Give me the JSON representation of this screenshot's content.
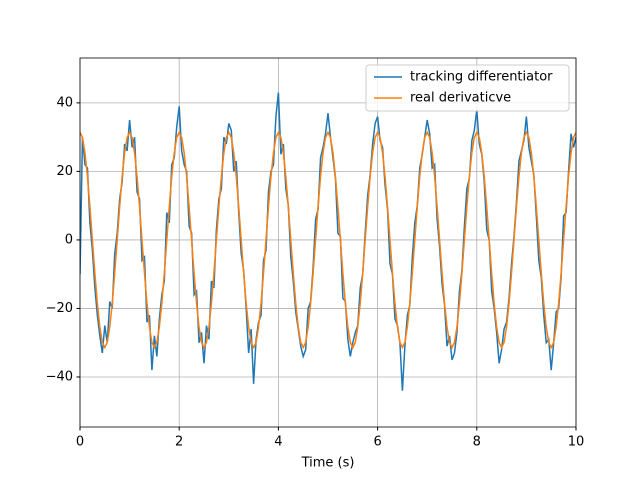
{
  "chart_data": {
    "type": "line",
    "xlabel": "Time (s)",
    "xlim": [
      0,
      10
    ],
    "ylim": [
      -54.6,
      53.1
    ],
    "xticks": [
      0,
      2,
      4,
      6,
      8,
      10
    ],
    "yticks": [
      {
        "value": -40,
        "label": "−40"
      },
      {
        "value": -20,
        "label": "−20"
      },
      0,
      20,
      40
    ],
    "grid": true,
    "legend": "upper right",
    "x": [
      0,
      0.05,
      0.1,
      0.15,
      0.2,
      0.25,
      0.3,
      0.35,
      0.4,
      0.45,
      0.5,
      0.55,
      0.6,
      0.65,
      0.7,
      0.75,
      0.8,
      0.85,
      0.9,
      0.95,
      1,
      1.05,
      1.1,
      1.15,
      1.2,
      1.25,
      1.3,
      1.35,
      1.4,
      1.45,
      1.5,
      1.55,
      1.6,
      1.65,
      1.7,
      1.75,
      1.8,
      1.85,
      1.9,
      1.95,
      2,
      2.05,
      2.1,
      2.15,
      2.2,
      2.25,
      2.3,
      2.35,
      2.4,
      2.45,
      2.5,
      2.55,
      2.6,
      2.65,
      2.7,
      2.75,
      2.8,
      2.85,
      2.9,
      2.95,
      3,
      3.05,
      3.1,
      3.15,
      3.2,
      3.25,
      3.3,
      3.35,
      3.4,
      3.45,
      3.5,
      3.55,
      3.6,
      3.65,
      3.7,
      3.75,
      3.8,
      3.85,
      3.9,
      3.95,
      4,
      4.05,
      4.1,
      4.15,
      4.2,
      4.25,
      4.3,
      4.35,
      4.4,
      4.45,
      4.5,
      4.55,
      4.6,
      4.65,
      4.7,
      4.75,
      4.8,
      4.85,
      4.9,
      4.95,
      5,
      5.05,
      5.1,
      5.15,
      5.2,
      5.25,
      5.3,
      5.35,
      5.4,
      5.45,
      5.5,
      5.55,
      5.6,
      5.65,
      5.7,
      5.75,
      5.8,
      5.85,
      5.9,
      5.95,
      6,
      6.05,
      6.1,
      6.15,
      6.2,
      6.25,
      6.3,
      6.35,
      6.4,
      6.45,
      6.5,
      6.55,
      6.6,
      6.65,
      6.7,
      6.75,
      6.8,
      6.85,
      6.9,
      6.95,
      7,
      7.05,
      7.1,
      7.15,
      7.2,
      7.25,
      7.3,
      7.35,
      7.4,
      7.45,
      7.5,
      7.55,
      7.6,
      7.65,
      7.7,
      7.75,
      7.8,
      7.85,
      7.9,
      7.95,
      8,
      8.05,
      8.1,
      8.15,
      8.2,
      8.25,
      8.3,
      8.35,
      8.4,
      8.45,
      8.5,
      8.55,
      8.6,
      8.65,
      8.7,
      8.75,
      8.8,
      8.85,
      8.9,
      8.95,
      9,
      9.05,
      9.1,
      9.15,
      9.2,
      9.25,
      9.3,
      9.35,
      9.4,
      9.45,
      9.5,
      9.55,
      9.6,
      9.65,
      9.7,
      9.75,
      9.8,
      9.85,
      9.9,
      9.95,
      10
    ],
    "series": [
      {
        "name": "tracking differentiator",
        "color": "#1f77b4",
        "values": [
          -10,
          30,
          22,
          21,
          5,
          -3,
          -14,
          -22,
          -28,
          -33,
          -25,
          -30,
          -18,
          -20,
          -4,
          2,
          12,
          17,
          28,
          26,
          35,
          27,
          30,
          14,
          12,
          -6,
          -5,
          -24,
          -22,
          -38,
          -28,
          -34,
          -23,
          -16,
          -12,
          8,
          5,
          22,
          24,
          33,
          39,
          26,
          22,
          20,
          4,
          2,
          -16,
          -15,
          -30,
          -27,
          -36,
          -25,
          -29,
          -12,
          -14,
          3,
          12,
          15,
          30,
          28,
          34,
          32,
          20,
          23,
          8,
          -4,
          -9,
          -20,
          -33,
          -26,
          -42,
          -29,
          -24,
          -22,
          -6,
          -3,
          14,
          20,
          22,
          36,
          43,
          25,
          28,
          15,
          10,
          -5,
          -12,
          -21,
          -26,
          -31,
          -34,
          -32,
          -20,
          -18,
          -8,
          6,
          9,
          24,
          27,
          31,
          37,
          30,
          24,
          18,
          2,
          1,
          -17,
          -18,
          -29,
          -34,
          -30,
          -27,
          -25,
          -14,
          -10,
          2,
          13,
          19,
          28,
          34,
          36,
          29,
          27,
          16,
          9,
          -7,
          -10,
          -23,
          -25,
          -30,
          -44,
          -31,
          -22,
          -19,
          -5,
          5,
          10,
          21,
          25,
          30,
          35,
          31,
          21,
          22,
          6,
          -2,
          -13,
          -19,
          -31,
          -28,
          -35,
          -33,
          -27,
          -15,
          -9,
          4,
          15,
          18,
          29,
          32,
          38,
          28,
          25,
          17,
          3,
          0,
          -15,
          -20,
          -27,
          -36,
          -32,
          -26,
          -24,
          -17,
          -7,
          1,
          11,
          23,
          26,
          29,
          36,
          27,
          23,
          19,
          7,
          -6,
          -11,
          -22,
          -30,
          -29,
          -38,
          -30,
          -21,
          -20,
          -11,
          7,
          8,
          20,
          31,
          27,
          30
        ]
      },
      {
        "name": "real derivaticve",
        "color": "#ff7f0e",
        "values": [
          31.4,
          29.9,
          25.4,
          18.5,
          9.7,
          0,
          -9.7,
          -18.5,
          -25.4,
          -29.9,
          -31.4,
          -29.9,
          -25.4,
          -18.5,
          -9.7,
          0,
          9.7,
          18.5,
          25.4,
          29.9,
          31.4,
          29.9,
          25.4,
          18.5,
          9.7,
          0,
          -9.7,
          -18.5,
          -25.4,
          -29.9,
          -31.4,
          -29.9,
          -25.4,
          -18.5,
          -9.7,
          0,
          9.7,
          18.5,
          25.4,
          29.9,
          31.4,
          29.9,
          25.4,
          18.5,
          9.7,
          0,
          -9.7,
          -18.5,
          -25.4,
          -29.9,
          -31.4,
          -29.9,
          -25.4,
          -18.5,
          -9.7,
          0,
          9.7,
          18.5,
          25.4,
          29.9,
          31.4,
          29.9,
          25.4,
          18.5,
          9.7,
          0,
          -9.7,
          -18.5,
          -25.4,
          -29.9,
          -31.4,
          -29.9,
          -25.4,
          -18.5,
          -9.7,
          0,
          9.7,
          18.5,
          25.4,
          29.9,
          31.4,
          29.9,
          25.4,
          18.5,
          9.7,
          0,
          -9.7,
          -18.5,
          -25.4,
          -29.9,
          -31.4,
          -29.9,
          -25.4,
          -18.5,
          -9.7,
          0,
          9.7,
          18.5,
          25.4,
          29.9,
          31.4,
          29.9,
          25.4,
          18.5,
          9.7,
          0,
          -9.7,
          -18.5,
          -25.4,
          -29.9,
          -31.4,
          -29.9,
          -25.4,
          -18.5,
          -9.7,
          0,
          9.7,
          18.5,
          25.4,
          29.9,
          31.4,
          29.9,
          25.4,
          18.5,
          9.7,
          0,
          -9.7,
          -18.5,
          -25.4,
          -29.9,
          -31.4,
          -29.9,
          -25.4,
          -18.5,
          -9.7,
          0,
          9.7,
          18.5,
          25.4,
          29.9,
          31.4,
          29.9,
          25.4,
          18.5,
          9.7,
          0,
          -9.7,
          -18.5,
          -25.4,
          -29.9,
          -31.4,
          -29.9,
          -25.4,
          -18.5,
          -9.7,
          0,
          9.7,
          18.5,
          25.4,
          29.9,
          31.4,
          29.9,
          25.4,
          18.5,
          9.7,
          0,
          -9.7,
          -18.5,
          -25.4,
          -29.9,
          -31.4,
          -29.9,
          -25.4,
          -18.5,
          -9.7,
          0,
          9.7,
          18.5,
          25.4,
          29.9,
          31.4,
          29.9,
          25.4,
          18.5,
          9.7,
          0,
          -9.7,
          -18.5,
          -25.4,
          -29.9,
          -31.4,
          -29.9,
          -25.4,
          -18.5,
          -9.7,
          0,
          9.7,
          18.5,
          25.4,
          29.9,
          31.4
        ]
      }
    ]
  }
}
